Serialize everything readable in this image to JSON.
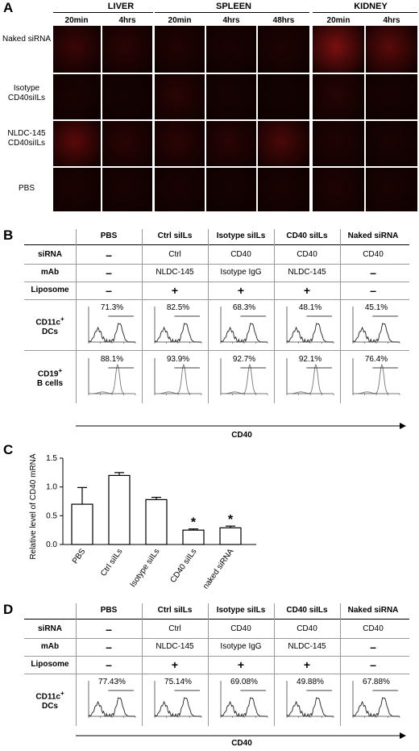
{
  "panelA": {
    "letter": "A",
    "organs": [
      {
        "name": "LIVER",
        "times": [
          "20min",
          "4hrs"
        ]
      },
      {
        "name": "SPLEEN",
        "times": [
          "20min",
          "4hrs",
          "48hrs"
        ]
      },
      {
        "name": "KIDNEY",
        "times": [
          "20min",
          "4hrs"
        ]
      }
    ],
    "rows": [
      "Naked siRNA",
      "Isotype CD40siILs",
      "NLDC-145 CD40siILs",
      "PBS"
    ],
    "tile_colors": [
      [
        "#3a0606",
        "#2b0404",
        "#220303",
        "#1a0202",
        "#1f0303",
        "#7a1010",
        "#5a0a0a"
      ],
      [
        "#1a0202",
        "#160202",
        "#2a0404",
        "#180202",
        "#140202",
        "#260404",
        "#180202"
      ],
      [
        "#5a0909",
        "#2a0404",
        "#2c0404",
        "#2a0404",
        "#4a0808",
        "#200303",
        "#1a0202"
      ],
      [
        "#1c0202",
        "#1a0202",
        "#1a0202",
        "#160202",
        "#1a0202",
        "#200303",
        "#1a0202"
      ]
    ]
  },
  "panelB": {
    "letter": "B",
    "columns": [
      "PBS",
      "Ctrl siILs",
      "Isotype siILs",
      "CD40  siILs",
      "Naked siRNA"
    ],
    "rows": [
      {
        "label": "siRNA",
        "values": [
          "–",
          "Ctrl",
          "CD40",
          "CD40",
          "CD40"
        ]
      },
      {
        "label": "mAb",
        "values": [
          "–",
          "NLDC-145",
          "Isotype IgG",
          "NLDC-145",
          "–"
        ]
      },
      {
        "label": "Liposome",
        "values": [
          "–",
          "+",
          "+",
          "+",
          "–"
        ]
      }
    ],
    "hist_rows": [
      {
        "label_main": "CD11c",
        "label_sup": "+",
        "label_sub": "DCs",
        "pcts": [
          "71.3%",
          "82.5%",
          "68.3%",
          "48.1%",
          "45.1%"
        ],
        "kind": "dc"
      },
      {
        "label_main": "CD19",
        "label_sup": "+",
        "label_sub": "B cells",
        "pcts": [
          "88.1%",
          "93.9%",
          "92.7%",
          "92.1%",
          "76.4%"
        ],
        "kind": "bcell"
      }
    ],
    "axis": "CD40"
  },
  "panelC": {
    "letter": "C",
    "chart_data": {
      "type": "bar",
      "categories": [
        "PBS",
        "Ctrl siILs",
        "Isotype siILs",
        "CD40 siILs",
        "naked siRNA"
      ],
      "values": [
        0.7,
        1.2,
        0.78,
        0.25,
        0.29
      ],
      "errors": [
        0.29,
        0.05,
        0.04,
        0.02,
        0.03
      ],
      "significance": [
        "",
        "",
        "",
        "*",
        "*"
      ],
      "ylabel": "Relative level of CD40 mRNA",
      "ylim": [
        0.0,
        1.5
      ],
      "yticks": [
        "0.0",
        "0.5",
        "1.0",
        "1.5"
      ]
    }
  },
  "panelD": {
    "letter": "D",
    "columns": [
      "PBS",
      "Ctrl siILs",
      "Isotype siILs",
      "CD40  siILs",
      "Naked siRNA"
    ],
    "rows": [
      {
        "label": "siRNA",
        "values": [
          "–",
          "Ctrl",
          "CD40",
          "CD40",
          "CD40"
        ]
      },
      {
        "label": "mAb",
        "values": [
          "–",
          "NLDC-145",
          "Isotype IgG",
          "NLDC-145",
          "–"
        ]
      },
      {
        "label": "Liposome",
        "values": [
          "–",
          "+",
          "+",
          "+",
          "–"
        ]
      }
    ],
    "hist_row": {
      "label_main": "CD11c",
      "label_sup": "+",
      "label_sub": "DCs",
      "pcts": [
        "77.43%",
        "75.14%",
        "69.08%",
        "49.88%",
        "67.88%"
      ]
    },
    "axis": "CD40"
  }
}
